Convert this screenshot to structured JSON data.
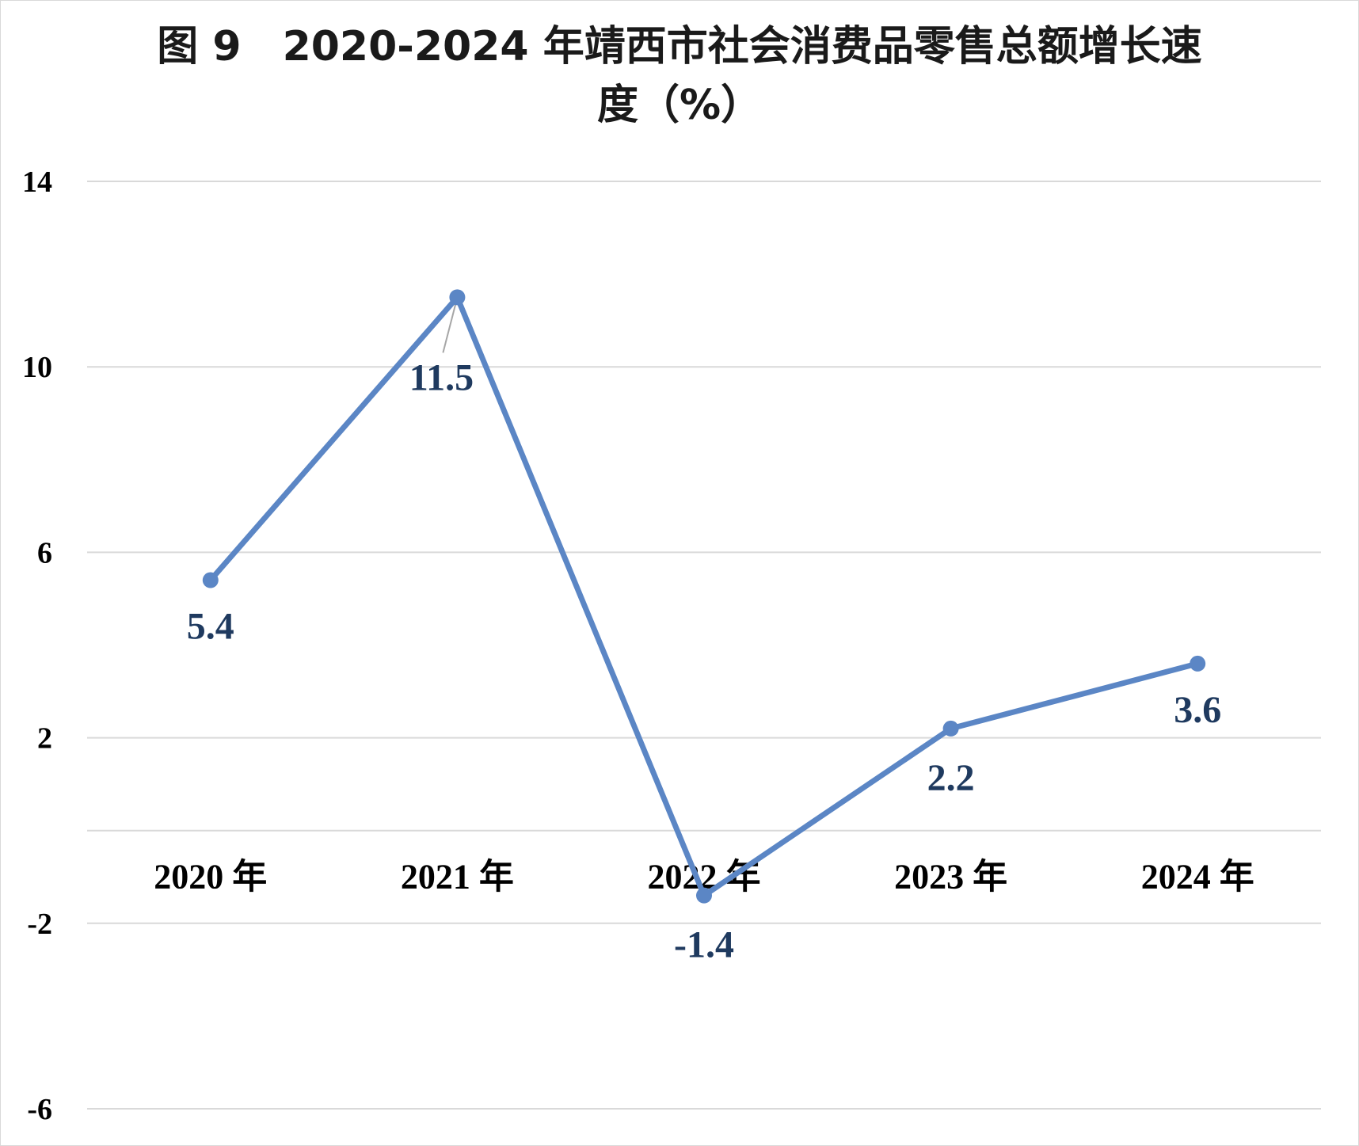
{
  "chart_data": {
    "type": "line",
    "title_line1": "图 9　2020-2024 年靖西市社会消费品零售总额增长速",
    "title_line2": "度（%）",
    "categories": [
      "2020 年",
      "2021 年",
      "2022 年",
      "2023 年",
      "2024 年"
    ],
    "series": [
      {
        "values": [
          5.4,
          11.5,
          -1.4,
          2.2,
          3.6
        ],
        "color": "#5b86c5"
      }
    ],
    "data_labels": [
      "5.4",
      "11.5",
      "-1.4",
      "2.2",
      "3.6"
    ],
    "y_ticks": [
      14,
      10,
      6,
      2,
      -2,
      -6
    ],
    "y_tick_labels": [
      "14",
      "10",
      "6",
      "2",
      "-2",
      "-6"
    ],
    "ylim": [
      -6,
      14
    ],
    "grid": true,
    "legend": "none",
    "xlabel": "",
    "ylabel": ""
  }
}
